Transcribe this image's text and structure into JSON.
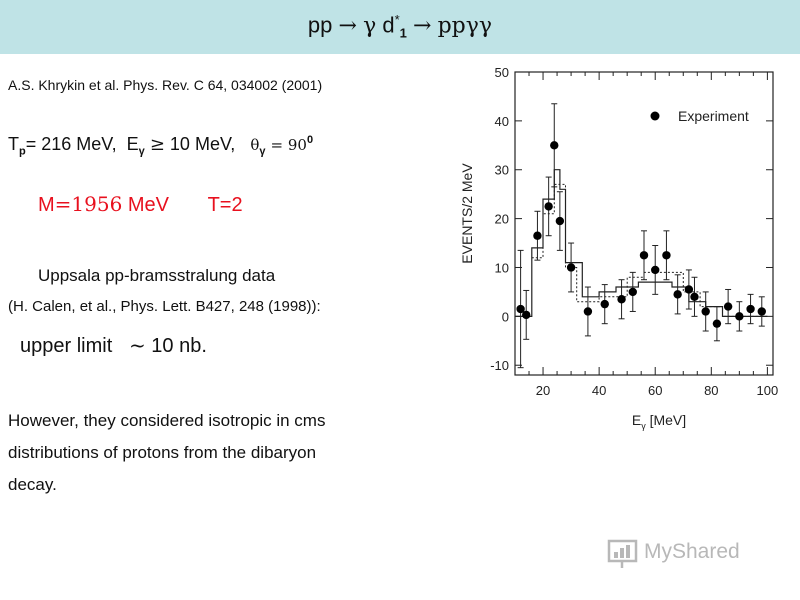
{
  "slide": {
    "title_pre": "pp",
    "title_arrow1": "→",
    "title_gamma": "γ",
    "title_d": " d",
    "title_star": "*",
    "title_sub": "1",
    "title_arrow2": "→",
    "title_post": "ppγγ",
    "reference": "A.S. Khrykin et al. Phys. Rev. C 64, 034002 (2001)",
    "tp_label": "T",
    "tp_sub": "p",
    "tp_value": "= 216 MeV,",
    "eg_label": "E",
    "eg_sub": "γ",
    "eg_sym": "≥",
    "eg_value": "10 MeV,",
    "theta_sym": "θ",
    "theta_sub": "γ",
    "theta_eq": "= 90",
    "theta_sup": "0",
    "mass_label": "M",
    "mass_eq": "=1956",
    "mass_unit": " MeV",
    "isospin": "T=2",
    "uppsala_line": "Uppsala pp-bramsstralung data",
    "calen_ref": "(H. Calen, et al., Phys. Lett. B427, 248 (1998)):",
    "upper_label": "upper limit",
    "upper_sym": "~",
    "upper_value": "10 nb.",
    "paragraph_lines": [
      "However, they considered isotropic in cms",
      "distributions of protons from the dibaryon",
      "decay."
    ]
  },
  "logo": {
    "text": "MyShared"
  },
  "chart_data": {
    "type": "scatter",
    "ylabel": "EVENTS/2 MeV",
    "xlabel_main": "E",
    "xlabel_sub": "γ",
    "xlabel_unit": " [MeV]",
    "xlim": [
      10,
      102
    ],
    "ylim": [
      -12,
      50
    ],
    "xticks": [
      20,
      40,
      60,
      80,
      100
    ],
    "yticks": [
      -10,
      0,
      10,
      20,
      30,
      40,
      50
    ],
    "legend": "Experiment",
    "points": [
      {
        "x": 12,
        "y": 1.5,
        "err": 12
      },
      {
        "x": 14,
        "y": 0.3,
        "err": 5
      },
      {
        "x": 18,
        "y": 16.5,
        "err": 5
      },
      {
        "x": 22,
        "y": 22.5,
        "err": 6
      },
      {
        "x": 24,
        "y": 35,
        "err": 8.5
      },
      {
        "x": 26,
        "y": 19.5,
        "err": 6
      },
      {
        "x": 30,
        "y": 10,
        "err": 5
      },
      {
        "x": 36,
        "y": 1,
        "err": 5
      },
      {
        "x": 42,
        "y": 2.5,
        "err": 4
      },
      {
        "x": 48,
        "y": 3.5,
        "err": 4
      },
      {
        "x": 52,
        "y": 5,
        "err": 4
      },
      {
        "x": 56,
        "y": 12.5,
        "err": 5
      },
      {
        "x": 60,
        "y": 9.5,
        "err": 5
      },
      {
        "x": 64,
        "y": 12.5,
        "err": 5
      },
      {
        "x": 68,
        "y": 4.5,
        "err": 4
      },
      {
        "x": 72,
        "y": 5.5,
        "err": 4
      },
      {
        "x": 74,
        "y": 4,
        "err": 4
      },
      {
        "x": 78,
        "y": 1,
        "err": 4
      },
      {
        "x": 82,
        "y": -1.5,
        "err": 3.5
      },
      {
        "x": 86,
        "y": 2,
        "err": 3.5
      },
      {
        "x": 90,
        "y": 0,
        "err": 3
      },
      {
        "x": 94,
        "y": 1.5,
        "err": 3
      },
      {
        "x": 98,
        "y": 1,
        "err": 3
      }
    ],
    "solid_hist": [
      [
        10,
        0
      ],
      [
        16,
        0
      ],
      [
        16,
        14
      ],
      [
        20,
        14
      ],
      [
        20,
        24
      ],
      [
        24,
        24
      ],
      [
        24,
        30
      ],
      [
        26,
        30
      ],
      [
        26,
        26
      ],
      [
        28,
        26
      ],
      [
        28,
        11
      ],
      [
        34,
        11
      ],
      [
        34,
        4
      ],
      [
        40,
        4
      ],
      [
        40,
        5
      ],
      [
        46,
        5
      ],
      [
        46,
        6
      ],
      [
        54,
        6
      ],
      [
        54,
        7
      ],
      [
        66,
        7
      ],
      [
        66,
        6
      ],
      [
        72,
        6
      ],
      [
        72,
        3
      ],
      [
        78,
        3
      ],
      [
        78,
        2
      ],
      [
        84,
        2
      ],
      [
        84,
        0
      ],
      [
        100,
        0
      ]
    ],
    "dashed_hist": [
      [
        16,
        12
      ],
      [
        20,
        12
      ],
      [
        20,
        21
      ],
      [
        24,
        21
      ],
      [
        24,
        27
      ],
      [
        28,
        27
      ],
      [
        28,
        10
      ],
      [
        32,
        10
      ],
      [
        32,
        3
      ],
      [
        40,
        3
      ],
      [
        40,
        4
      ],
      [
        50,
        4
      ],
      [
        50,
        8
      ],
      [
        56,
        8
      ],
      [
        56,
        9
      ],
      [
        70,
        9
      ],
      [
        70,
        5
      ],
      [
        76,
        5
      ],
      [
        76,
        2
      ],
      [
        84,
        2
      ],
      [
        84,
        0
      ],
      [
        100,
        0
      ]
    ]
  }
}
